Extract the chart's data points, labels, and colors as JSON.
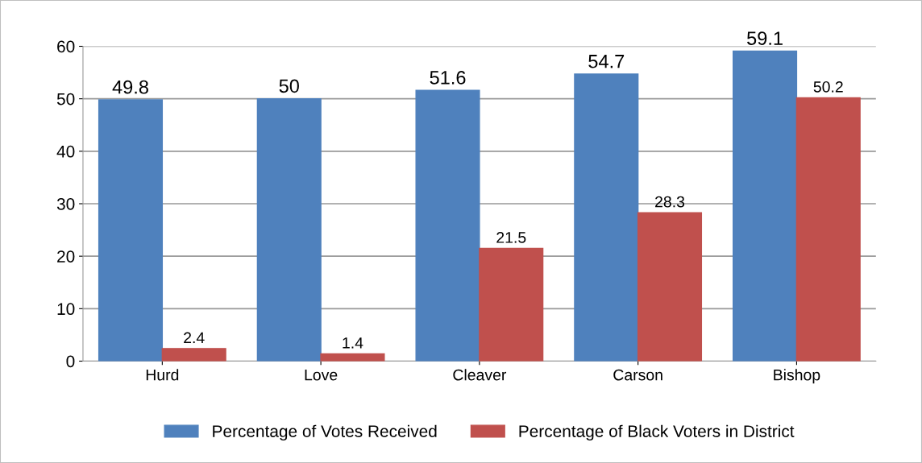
{
  "chart_data": {
    "type": "bar",
    "categories": [
      "Hurd",
      "Love",
      "Cleaver",
      "Carson",
      "Bishop"
    ],
    "series": [
      {
        "name": "Percentage of Votes Received",
        "color": "#4f81bd",
        "values": [
          49.8,
          50,
          51.6,
          54.7,
          59.1
        ]
      },
      {
        "name": "Percentage of Black Voters in District",
        "color": "#c0504d",
        "values": [
          2.4,
          1.4,
          21.5,
          28.3,
          50.2
        ]
      }
    ],
    "ylim": [
      0,
      60
    ],
    "yticks": [
      0,
      10,
      20,
      30,
      40,
      50,
      60
    ],
    "grid": "y",
    "legend": "bottom",
    "data_labels": true
  }
}
